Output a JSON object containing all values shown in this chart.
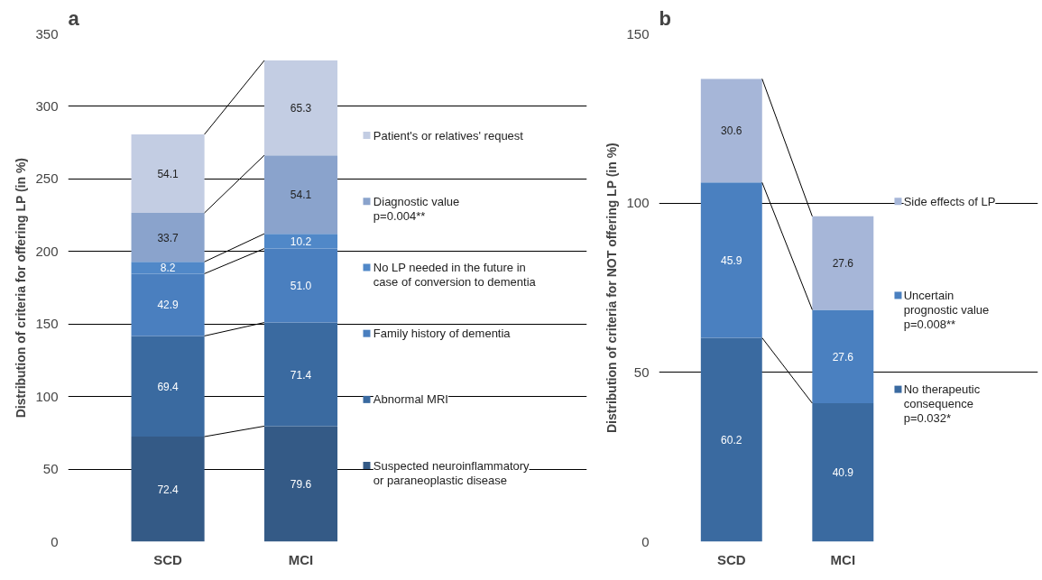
{
  "chart_data": [
    {
      "type": "bar",
      "title": "a",
      "stacked": true,
      "grid": "y",
      "legend": "right",
      "ylabel": "Distribution of criteria for offering LP (in %)",
      "categories": [
        "SCD",
        "MCI"
      ],
      "ylim": [
        0,
        350
      ],
      "yticks": [
        0,
        50,
        100,
        150,
        200,
        250,
        300,
        350
      ],
      "series": [
        {
          "name": "Suspected neuroinflammatory\nor paraneoplastic disease",
          "color": "#345a86",
          "values": [
            72.4,
            79.6
          ],
          "value_labels": [
            "72.4",
            "79.6"
          ]
        },
        {
          "name": "Abnormal MRI",
          "color": "#3a6aa0",
          "values": [
            69.4,
            71.4
          ],
          "value_labels": [
            "69.4",
            "71.4"
          ]
        },
        {
          "name": "Family history of dementia",
          "color": "#4a7fbf",
          "values": [
            42.9,
            51.0
          ],
          "value_labels": [
            "42.9",
            "51.0"
          ]
        },
        {
          "name": "No LP needed in the future in\ncase of conversion to dementia",
          "color": "#5088c8",
          "values": [
            8.2,
            10.2
          ],
          "value_labels": [
            "8.2",
            "10.2"
          ]
        },
        {
          "name": "Diagnostic value\np=0.004**",
          "color": "#8aa3cc",
          "values": [
            33.7,
            54.1
          ],
          "value_labels": [
            "33.7",
            "54.1"
          ]
        },
        {
          "name": "Patient's or relatives' request",
          "color": "#c3cde3",
          "values": [
            54.1,
            65.3
          ],
          "value_labels": [
            "54.1",
            "65.3"
          ]
        }
      ]
    },
    {
      "type": "bar",
      "title": "b",
      "stacked": true,
      "grid": "y",
      "legend": "right",
      "ylabel": "Distribution of criteria for NOT offering LP (in %)",
      "categories": [
        "SCD",
        "MCI"
      ],
      "ylim": [
        0,
        150
      ],
      "yticks": [
        0,
        50,
        100,
        150
      ],
      "series": [
        {
          "name": "No therapeutic\nconsequence\np=0.032*",
          "color": "#3a6aa0",
          "values": [
            60.2,
            40.9
          ],
          "value_labels": [
            "60.2",
            "40.9"
          ]
        },
        {
          "name": "Uncertain\nprognostic value\np=0.008**",
          "color": "#4a80c0",
          "values": [
            45.9,
            27.6
          ],
          "value_labels": [
            "45.9",
            "27.6"
          ]
        },
        {
          "name": "Side effects of LP",
          "color": "#a6b6d8",
          "values": [
            30.6,
            27.6
          ],
          "value_labels": [
            "30.6",
            "27.6"
          ]
        }
      ]
    }
  ]
}
